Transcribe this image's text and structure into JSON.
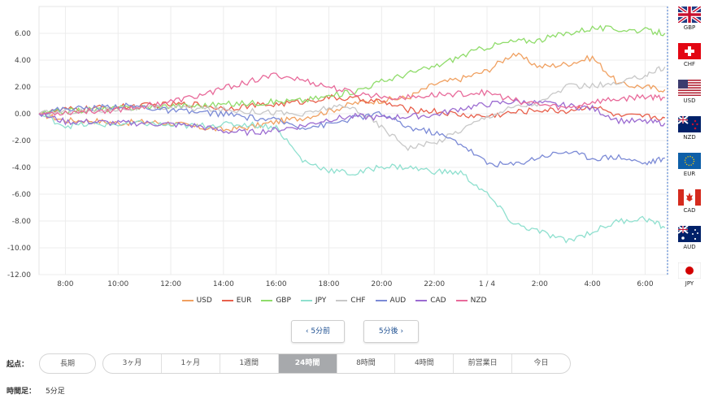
{
  "chart_data": {
    "type": "line",
    "ylim": [
      -12,
      8
    ],
    "y_ticks": [
      "6.00",
      "4.00",
      "2.00",
      "0.00",
      "-2.00",
      "-4.00",
      "-6.00",
      "-8.00",
      "-10.00",
      "-12.00"
    ],
    "x_ticks": [
      "8:00",
      "10:00",
      "12:00",
      "14:00",
      "16:00",
      "18:00",
      "20:00",
      "22:00",
      "1 / 4",
      "2:00",
      "4:00",
      "6:00"
    ],
    "x": [
      "7:00",
      "8:00",
      "9:00",
      "10:00",
      "11:00",
      "12:00",
      "13:00",
      "14:00",
      "15:00",
      "16:00",
      "17:00",
      "18:00",
      "19:00",
      "20:00",
      "21:00",
      "22:00",
      "23:00",
      "0:00",
      "1:00",
      "2:00",
      "3:00",
      "4:00",
      "5:00",
      "6:00",
      "6:45"
    ],
    "series": [
      {
        "name": "USD",
        "color": "#f0a060",
        "values": [
          0,
          -0.5,
          -0.5,
          -0.7,
          -0.6,
          -0.7,
          -1.0,
          -1.2,
          -1.0,
          -0.6,
          -0.3,
          0.2,
          0.8,
          1.0,
          1.2,
          2.2,
          2.6,
          3.2,
          4.5,
          3.5,
          3.7,
          4.2,
          2.2,
          2.0,
          1.8
        ]
      },
      {
        "name": "EUR",
        "color": "#e8604c",
        "values": [
          0,
          0.3,
          0.4,
          0.5,
          0.6,
          0.7,
          0.7,
          0.4,
          0.6,
          0.7,
          0.9,
          1.2,
          1.1,
          0.9,
          0.3,
          0.2,
          -0.1,
          -0.2,
          0.1,
          0.3,
          0.2,
          0.6,
          -0.2,
          -0.2,
          -0.3
        ]
      },
      {
        "name": "GBP",
        "color": "#8fdc6a",
        "values": [
          0,
          0.2,
          0.3,
          0.4,
          0.5,
          0.6,
          0.6,
          0.7,
          0.8,
          0.9,
          1.0,
          1.3,
          1.7,
          2.4,
          3.0,
          3.5,
          4.3,
          5.0,
          5.4,
          5.5,
          6.0,
          6.4,
          6.3,
          6.2,
          6.0
        ]
      },
      {
        "name": "JPY",
        "color": "#8fe0cf",
        "values": [
          0,
          -0.9,
          -0.8,
          -0.8,
          -0.7,
          -0.9,
          -0.9,
          -0.8,
          -0.8,
          -1.0,
          -3.5,
          -4.2,
          -4.5,
          -3.9,
          -4.0,
          -4.3,
          -4.4,
          -6.0,
          -8.2,
          -8.8,
          -9.5,
          -8.8,
          -8.0,
          -7.8,
          -8.5
        ]
      },
      {
        "name": "CHF",
        "color": "#c8c8c8",
        "values": [
          0,
          0.2,
          0.2,
          0.4,
          0.4,
          0.5,
          0.4,
          0.3,
          0.2,
          0.1,
          -0.1,
          0.5,
          0.4,
          -1.0,
          -2.5,
          -2.2,
          -1.2,
          -0.2,
          0.5,
          0.8,
          2.0,
          2.1,
          2.2,
          2.9,
          3.5
        ]
      },
      {
        "name": "AUD",
        "color": "#7b8ad6",
        "values": [
          0,
          0.4,
          0.4,
          0.6,
          0.5,
          0.2,
          0.1,
          0.0,
          -0.3,
          -0.5,
          -1.0,
          -0.8,
          -0.3,
          0.0,
          -1.0,
          -1.4,
          -2.2,
          -3.7,
          -3.8,
          -3.2,
          -2.8,
          -3.3,
          -3.2,
          -3.7,
          -3.3
        ]
      },
      {
        "name": "CAD",
        "color": "#9b6bd1",
        "values": [
          0,
          -0.6,
          -0.6,
          -0.7,
          -0.7,
          -0.8,
          -0.9,
          -1.3,
          -1.4,
          -1.2,
          -0.9,
          -0.4,
          -0.2,
          -0.3,
          -0.2,
          -0.1,
          0.4,
          0.7,
          0.9,
          0.8,
          0.6,
          0.4,
          -0.5,
          -0.6,
          -0.7
        ]
      },
      {
        "name": "NZD",
        "color": "#e86a9a",
        "values": [
          0,
          0.1,
          0.2,
          0.3,
          0.6,
          0.9,
          1.3,
          1.9,
          2.4,
          2.9,
          2.5,
          2.0,
          1.5,
          1.3,
          1.2,
          1.4,
          1.5,
          1.6,
          1.0,
          0.7,
          0.4,
          0.9,
          1.1,
          1.3,
          1.2
        ]
      }
    ]
  },
  "flags": [
    {
      "code": "GBP",
      "icon": "uk-flag-icon"
    },
    {
      "code": "CHF",
      "icon": "swiss-flag-icon"
    },
    {
      "code": "USD",
      "icon": "us-flag-icon"
    },
    {
      "code": "NZD",
      "icon": "nz-flag-icon"
    },
    {
      "code": "EUR",
      "icon": "eu-flag-icon"
    },
    {
      "code": "CAD",
      "icon": "canada-flag-icon"
    },
    {
      "code": "AUD",
      "icon": "australia-flag-icon"
    },
    {
      "code": "JPY",
      "icon": "japan-flag-icon"
    }
  ],
  "nav": {
    "prev": "‹ 5分前",
    "next": "5分後 ›"
  },
  "controls": {
    "start_label": "起点：",
    "long_term": "長期",
    "periods": [
      "3ヶ月",
      "1ヶ月",
      "1週間",
      "24時間",
      "8時間",
      "4時間",
      "前営業日",
      "今日"
    ],
    "active_period": "24時間",
    "interval_label": "時間足：",
    "interval_value": "5分足"
  }
}
